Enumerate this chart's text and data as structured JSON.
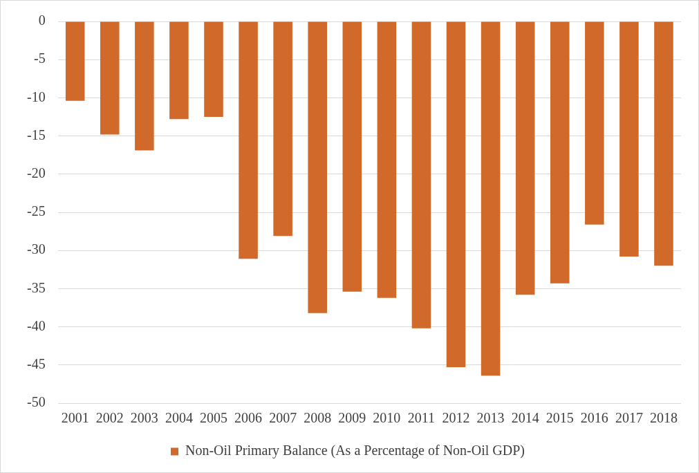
{
  "chart_data": {
    "type": "bar",
    "categories": [
      "2001",
      "2002",
      "2003",
      "2004",
      "2005",
      "2006",
      "2007",
      "2008",
      "2009",
      "2010",
      "2011",
      "2012",
      "2013",
      "2014",
      "2015",
      "2016",
      "2017",
      "2018"
    ],
    "series": [
      {
        "name": "Non-Oil Primary Balance (As a Percentage of Non-Oil GDP)",
        "color": "#d0692a",
        "values": [
          -10.4,
          -14.8,
          -16.9,
          -12.8,
          -12.5,
          -31.1,
          -28.1,
          -38.2,
          -35.4,
          -36.2,
          -40.2,
          -45.3,
          -46.4,
          -35.8,
          -34.3,
          -26.6,
          -30.8,
          -32.0
        ]
      }
    ],
    "ylim": [
      -50,
      0
    ],
    "yticks": [
      -50,
      -45,
      -40,
      -35,
      -30,
      -25,
      -20,
      -15,
      -10,
      -5,
      0
    ],
    "grid": "y",
    "legend": "bottom"
  }
}
